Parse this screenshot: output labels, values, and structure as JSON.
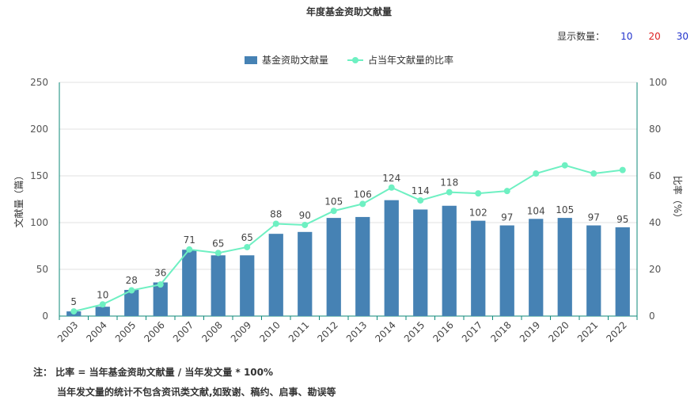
{
  "title": "年度基金资助文献量",
  "count_selector": {
    "label": "显示数量：",
    "options": [
      {
        "label": "10",
        "color": "#2233cc"
      },
      {
        "label": "20",
        "color": "#dd2222"
      },
      {
        "label": "30",
        "color": "#2233cc"
      }
    ]
  },
  "legend": {
    "bar_label": "基金资助文献量",
    "line_label": "占当年文献量的比率"
  },
  "colors": {
    "bar": "#4682b4",
    "line": "#6ef0c2",
    "axis": "#0d8a7a",
    "grid": "#e0e0e0"
  },
  "notes": {
    "line1": "注：  比率 = 当年基金资助文献量 / 当年发文量 * 100%",
    "line2": "当年发文量的统计不包含资讯类文献,如致谢、稿约、启事、勘误等"
  },
  "chart_data": {
    "type": "bar",
    "title": "年度基金资助文献量",
    "ylabel": "文献量（篇）",
    "y2label": "比率（%）",
    "categories": [
      "2003",
      "2004",
      "2005",
      "2006",
      "2007",
      "2008",
      "2009",
      "2010",
      "2011",
      "2012",
      "2013",
      "2014",
      "2015",
      "2016",
      "2017",
      "2018",
      "2019",
      "2020",
      "2021",
      "2022"
    ],
    "ylim": [
      0,
      250
    ],
    "yticks": [
      0,
      50,
      100,
      150,
      200,
      250
    ],
    "y2lim": [
      0,
      100
    ],
    "y2ticks": [
      0,
      20,
      40,
      60,
      80,
      100
    ],
    "grid": true,
    "legend_position": "top-center",
    "series": [
      {
        "name": "基金资助文献量",
        "type": "bar",
        "axis": "left",
        "values": [
          5,
          10,
          28,
          36,
          71,
          65,
          65,
          88,
          90,
          105,
          106,
          124,
          114,
          118,
          102,
          97,
          104,
          105,
          97,
          95
        ]
      },
      {
        "name": "占当年文献量的比率",
        "type": "line",
        "axis": "right",
        "values": [
          2,
          5,
          11,
          13.5,
          28.5,
          27,
          29.5,
          39.5,
          39,
          45,
          48,
          55,
          49.5,
          53,
          52.5,
          53.5,
          61,
          64.5,
          61,
          62.5
        ]
      }
    ]
  }
}
